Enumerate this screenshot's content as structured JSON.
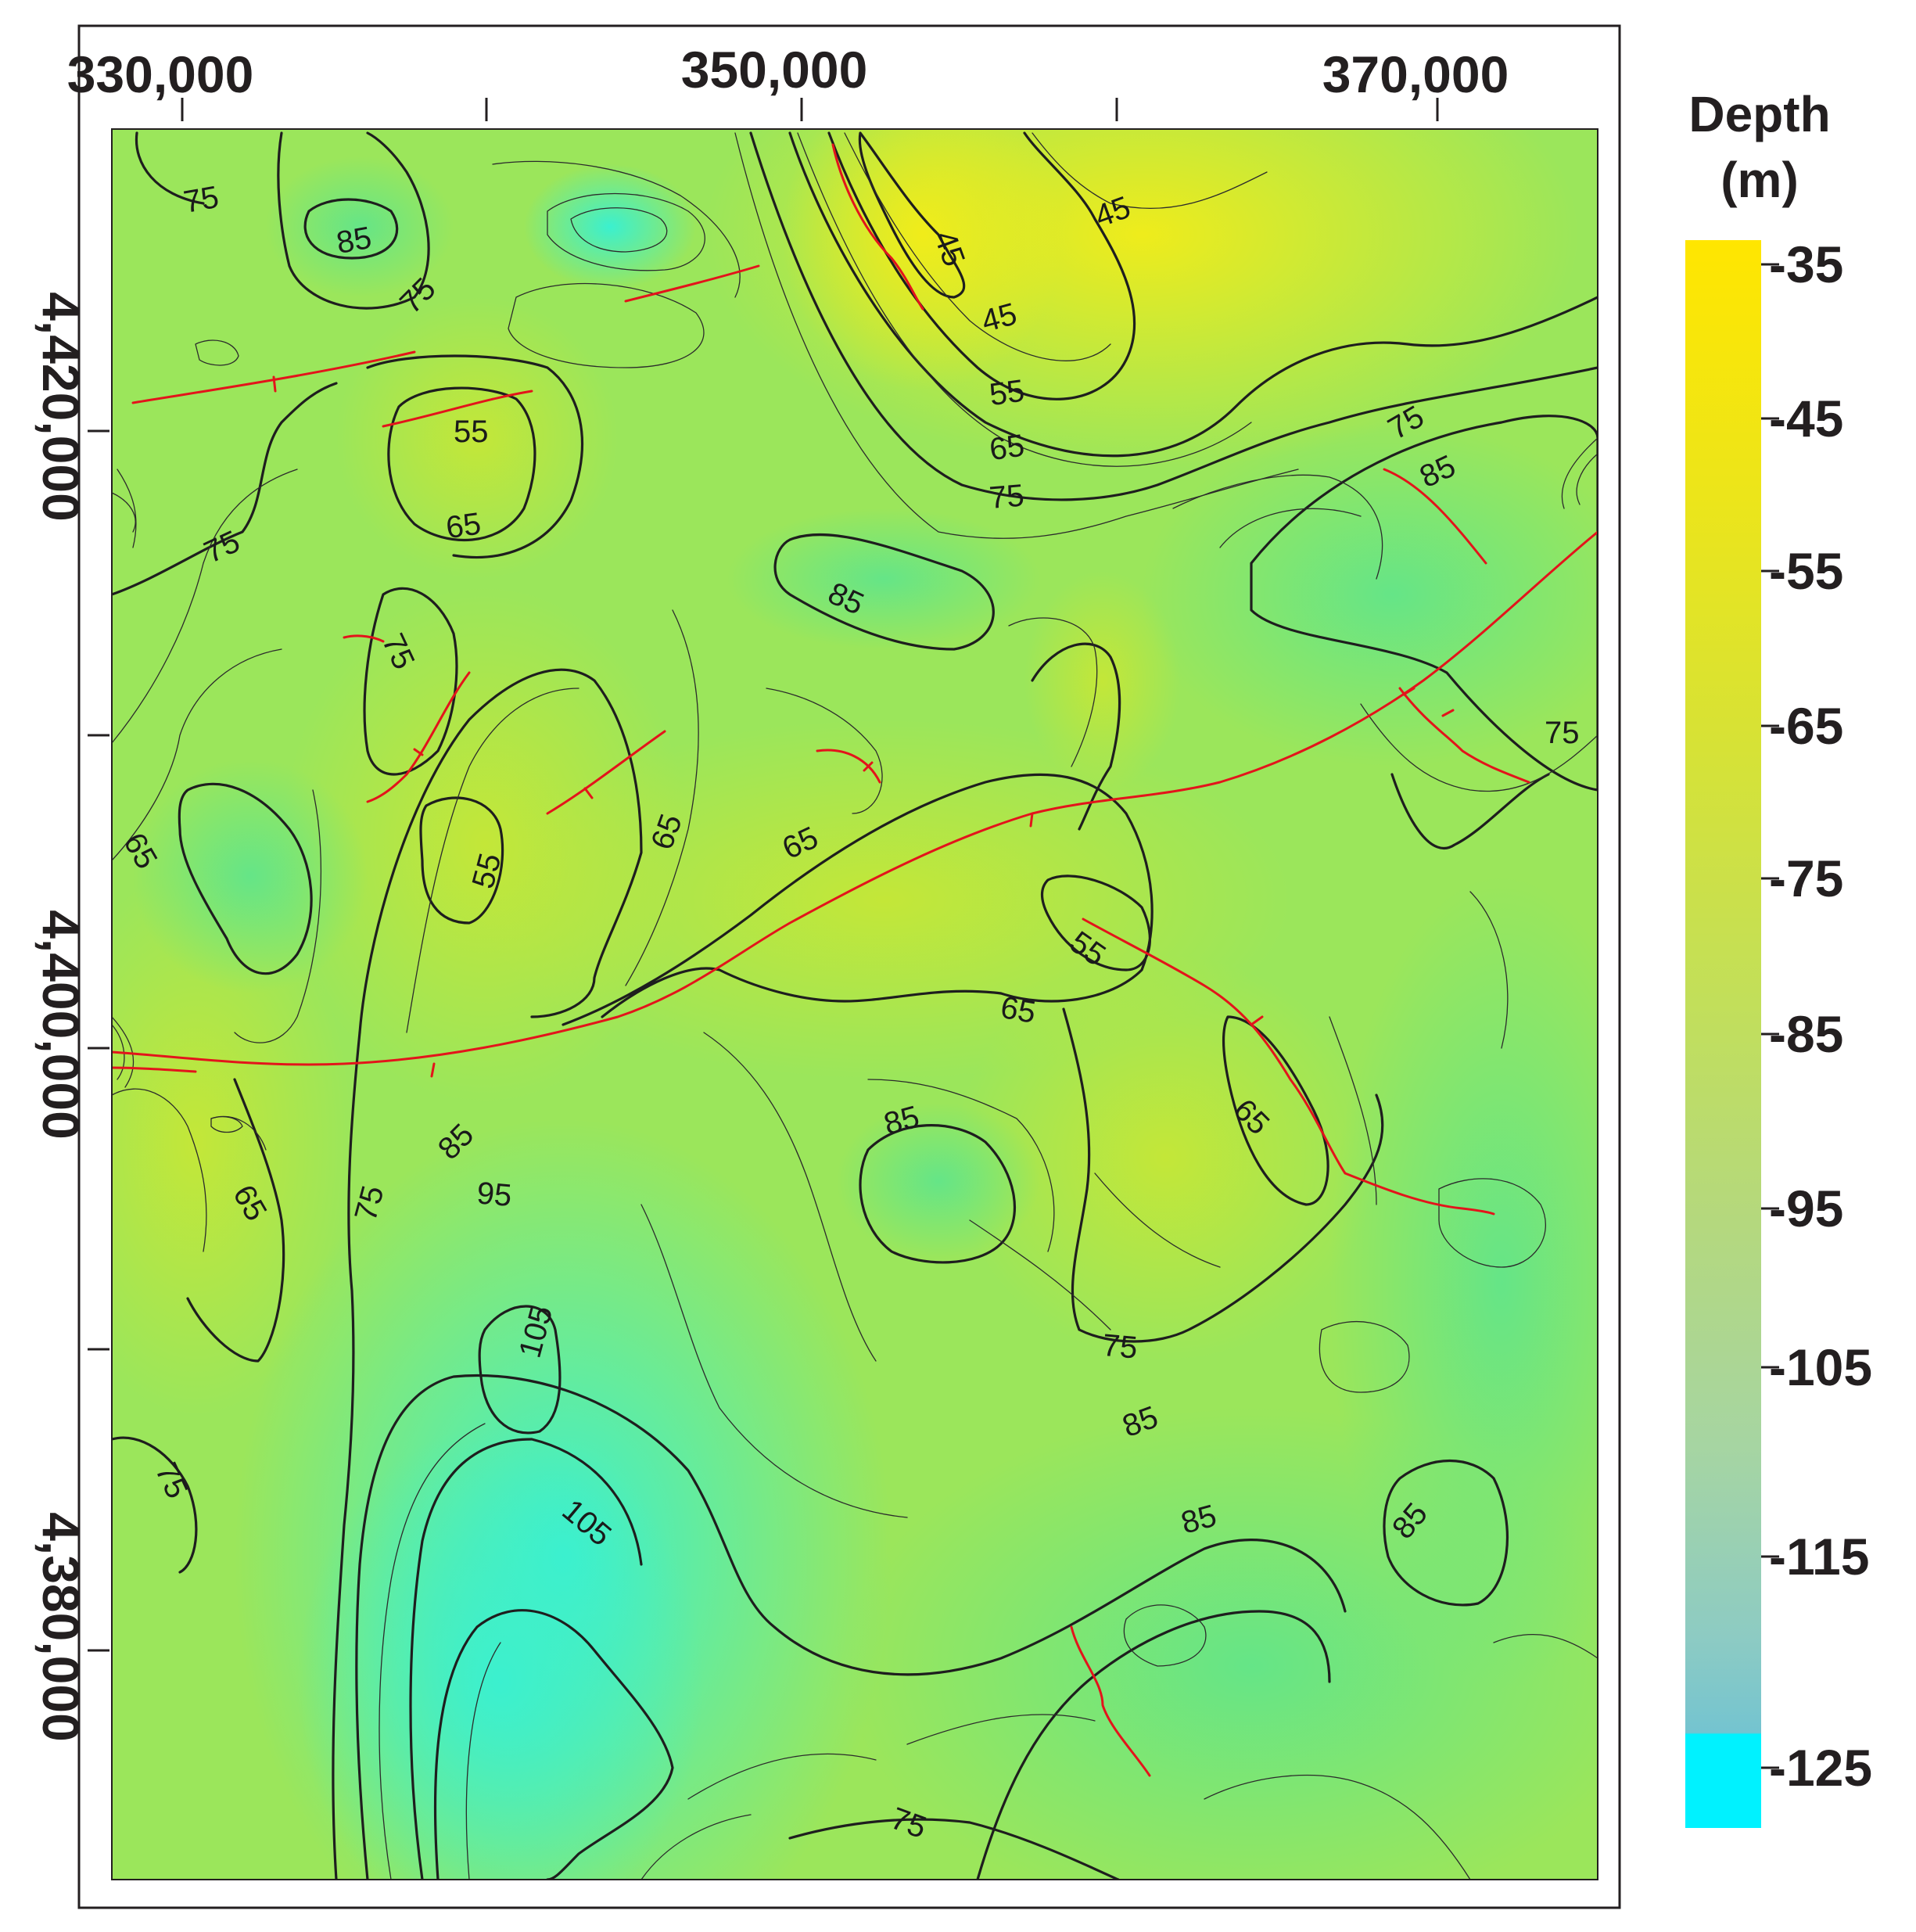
{
  "x_axis": {
    "ticks": [
      {
        "value": 330000,
        "label": "330,000"
      },
      {
        "value": 340000,
        "label": ""
      },
      {
        "value": 350000,
        "label": "350,000"
      },
      {
        "value": 360000,
        "label": ""
      },
      {
        "value": 370000,
        "label": "370,000"
      }
    ]
  },
  "y_axis": {
    "ticks": [
      {
        "value": 4420000,
        "label": "4,420,000"
      },
      {
        "value": 4410000,
        "label": ""
      },
      {
        "value": 4400000,
        "label": "4,400,000"
      },
      {
        "value": 4390000,
        "label": ""
      },
      {
        "value": 4380000,
        "label": "4,380,000"
      }
    ]
  },
  "colorbar": {
    "title_line1": "Depth",
    "title_line2": "(m)",
    "labels": [
      "-35",
      "-45",
      "-55",
      "-65",
      "-75",
      "-85",
      "-95",
      "-105",
      "-115",
      "-125"
    ],
    "colors": {
      "shallow": "#ffe600",
      "mid_yellow": "#d6ea2e",
      "mid_green": "#9ee65a",
      "deep_green": "#5ee38a",
      "teal": "#44eec8",
      "deepest": "#00f2ff"
    }
  },
  "contour_labels": [
    {
      "text": "75"
    },
    {
      "text": "85"
    },
    {
      "text": "75"
    },
    {
      "text": "45"
    },
    {
      "text": "45"
    },
    {
      "text": "45"
    },
    {
      "text": "55"
    },
    {
      "text": "55"
    },
    {
      "text": "65"
    },
    {
      "text": "75"
    },
    {
      "text": "65"
    },
    {
      "text": "75"
    },
    {
      "text": "85"
    },
    {
      "text": "75"
    },
    {
      "text": "85"
    },
    {
      "text": "75"
    },
    {
      "text": "65"
    },
    {
      "text": "55"
    },
    {
      "text": "65"
    },
    {
      "text": "75"
    },
    {
      "text": "65"
    },
    {
      "text": "55"
    },
    {
      "text": "65"
    },
    {
      "text": "85"
    },
    {
      "text": "85"
    },
    {
      "text": "95"
    },
    {
      "text": "75"
    },
    {
      "text": "65"
    },
    {
      "text": "105"
    },
    {
      "text": "65"
    },
    {
      "text": "75"
    },
    {
      "text": "85"
    },
    {
      "text": "85"
    },
    {
      "text": "85"
    },
    {
      "text": "105"
    },
    {
      "text": "75"
    },
    {
      "text": "75"
    }
  ],
  "colors": {
    "contour": "#1e1e1e",
    "fault": "#e3141b",
    "frame": "#231f20"
  }
}
